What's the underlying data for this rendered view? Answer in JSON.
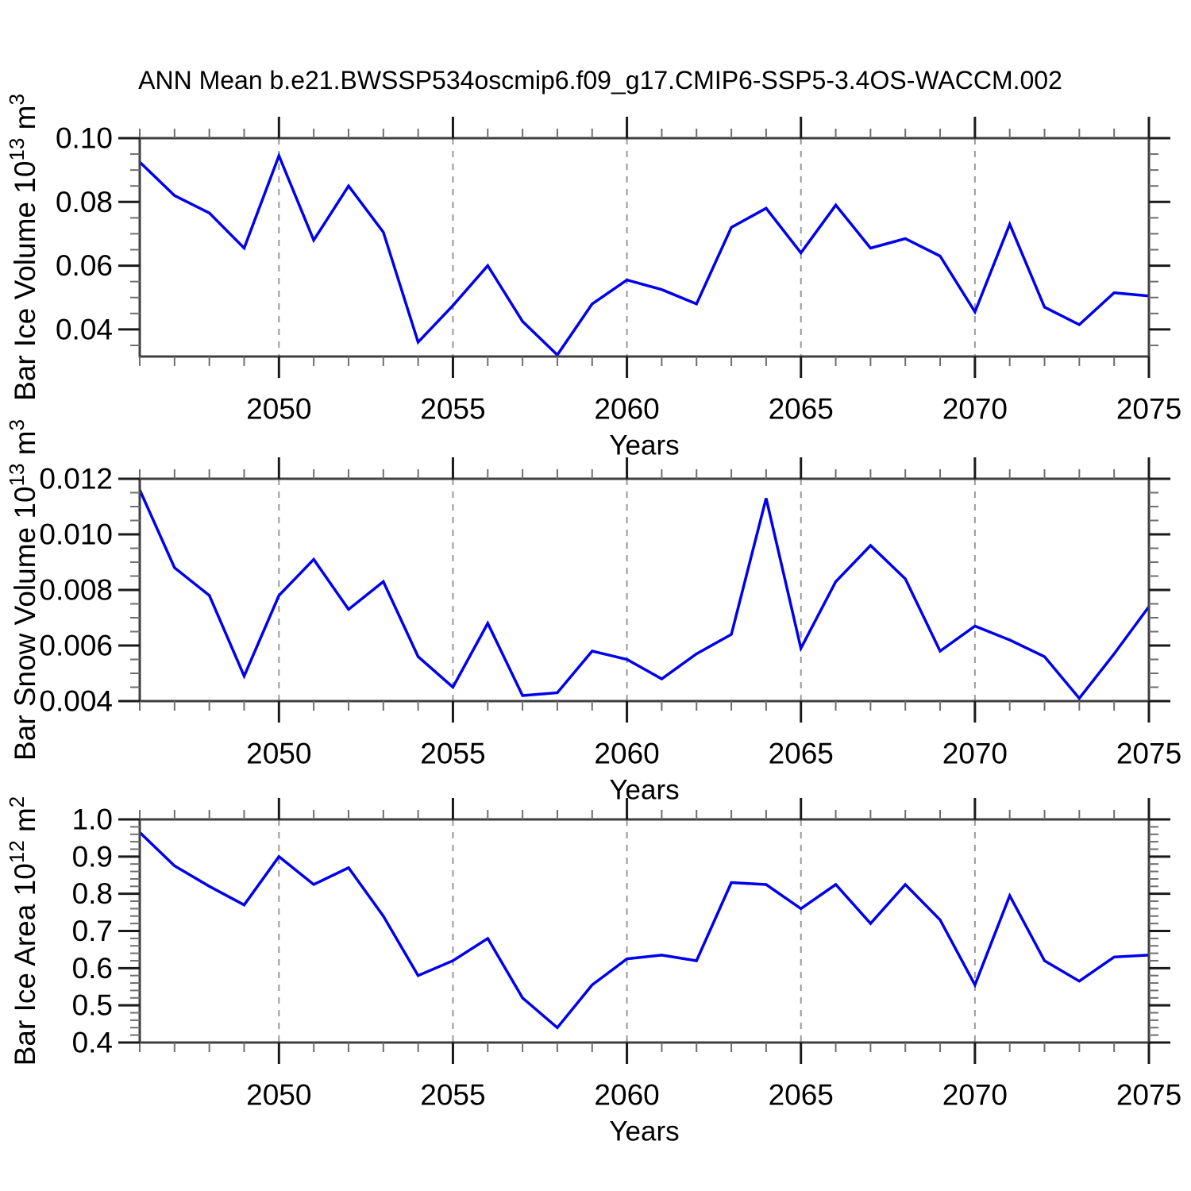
{
  "title": "ANN Mean b.e21.BWSSP534oscmip6.f09_g17.CMIP6-SSP5-3.4OS-WACCM.002",
  "colors": {
    "line": "#0000EE",
    "frame": "#3f3f3f",
    "major_tick": "#1a1a1a",
    "minor_tick": "#6e6e6e",
    "grid": "#999999",
    "text": "#000000",
    "background": "#ffffff"
  },
  "chart_data": [
    {
      "type": "line",
      "title": "",
      "ylabel": "Bar Ice Volume 10^13 m^3",
      "xlabel": "Years",
      "x": [
        2046,
        2047,
        2048,
        2049,
        2050,
        2051,
        2052,
        2053,
        2054,
        2055,
        2056,
        2057,
        2058,
        2059,
        2060,
        2061,
        2062,
        2063,
        2064,
        2065,
        2066,
        2067,
        2068,
        2069,
        2070,
        2071,
        2072,
        2073,
        2074,
        2075
      ],
      "values": [
        0.0925,
        0.082,
        0.0765,
        0.0655,
        0.0945,
        0.068,
        0.085,
        0.0705,
        0.036,
        0.0475,
        0.06,
        0.0425,
        0.032,
        0.048,
        0.0555,
        0.0525,
        0.048,
        0.072,
        0.078,
        0.064,
        0.079,
        0.0655,
        0.0685,
        0.063,
        0.0455,
        0.073,
        0.047,
        0.0415,
        0.0515,
        0.0505
      ],
      "xlim": [
        2046,
        2075
      ],
      "ylim": [
        0.0315,
        0.1
      ],
      "xticks": [
        2050,
        2055,
        2060,
        2065,
        2070,
        2075
      ],
      "xtick_labels": [
        "2050",
        "2055",
        "2060",
        "2065",
        "2070",
        "2075"
      ],
      "xminor_step": 1,
      "yticks": [
        0.04,
        0.06,
        0.08,
        0.1
      ],
      "ytick_labels": [
        "0.04",
        "0.06",
        "0.08",
        "0.10"
      ],
      "yminor_step": 0.005,
      "gridlines_x": [
        2050,
        2055,
        2060,
        2065,
        2070
      ],
      "grid_style": "dashed-vertical",
      "legend": "none"
    },
    {
      "type": "line",
      "title": "",
      "ylabel": "Bar Snow Volume 10^13 m^3",
      "xlabel": "Years",
      "x": [
        2046,
        2047,
        2048,
        2049,
        2050,
        2051,
        2052,
        2053,
        2054,
        2055,
        2056,
        2057,
        2058,
        2059,
        2060,
        2061,
        2062,
        2063,
        2064,
        2065,
        2066,
        2067,
        2068,
        2069,
        2070,
        2071,
        2072,
        2073,
        2074,
        2075
      ],
      "values": [
        0.0116,
        0.0088,
        0.0078,
        0.0049,
        0.0078,
        0.0091,
        0.0073,
        0.0083,
        0.0056,
        0.0045,
        0.0068,
        0.0042,
        0.0043,
        0.0058,
        0.0055,
        0.0048,
        0.0057,
        0.0064,
        0.0113,
        0.0059,
        0.0083,
        0.0096,
        0.0084,
        0.0058,
        0.0067,
        0.0062,
        0.0056,
        0.0041,
        0.0057,
        0.0074
      ],
      "xlim": [
        2046,
        2075
      ],
      "ylim": [
        0.004,
        0.012
      ],
      "xticks": [
        2050,
        2055,
        2060,
        2065,
        2070,
        2075
      ],
      "xtick_labels": [
        "2050",
        "2055",
        "2060",
        "2065",
        "2070",
        "2075"
      ],
      "xminor_step": 1,
      "yticks": [
        0.004,
        0.006,
        0.008,
        0.01,
        0.012
      ],
      "ytick_labels": [
        "0.004",
        "0.006",
        "0.008",
        "0.010",
        "0.012"
      ],
      "yminor_step": 0.0005,
      "gridlines_x": [
        2050,
        2055,
        2060,
        2065,
        2070
      ],
      "grid_style": "dashed-vertical",
      "legend": "none"
    },
    {
      "type": "line",
      "title": "",
      "ylabel": "Bar Ice Area 10^12 m^2",
      "xlabel": "Years",
      "x": [
        2046,
        2047,
        2048,
        2049,
        2050,
        2051,
        2052,
        2053,
        2054,
        2055,
        2056,
        2057,
        2058,
        2059,
        2060,
        2061,
        2062,
        2063,
        2064,
        2065,
        2066,
        2067,
        2068,
        2069,
        2070,
        2071,
        2072,
        2073,
        2074,
        2075
      ],
      "values": [
        0.965,
        0.875,
        0.82,
        0.77,
        0.9,
        0.825,
        0.87,
        0.74,
        0.58,
        0.62,
        0.68,
        0.52,
        0.44,
        0.555,
        0.625,
        0.635,
        0.62,
        0.83,
        0.825,
        0.76,
        0.825,
        0.72,
        0.825,
        0.73,
        0.555,
        0.795,
        0.62,
        0.565,
        0.63,
        0.635
      ],
      "xlim": [
        2046,
        2075
      ],
      "ylim": [
        0.4,
        1.0
      ],
      "xticks": [
        2050,
        2055,
        2060,
        2065,
        2070,
        2075
      ],
      "xtick_labels": [
        "2050",
        "2055",
        "2060",
        "2065",
        "2070",
        "2075"
      ],
      "xminor_step": 1,
      "yticks": [
        0.4,
        0.5,
        0.6,
        0.7,
        0.8,
        0.9,
        1.0
      ],
      "ytick_labels": [
        "0.4",
        "0.5",
        "0.6",
        "0.7",
        "0.8",
        "0.9",
        "1.0"
      ],
      "yminor_step": 0.02,
      "gridlines_x": [
        2050,
        2055,
        2060,
        2065,
        2070
      ],
      "grid_style": "dashed-vertical",
      "legend": "none"
    }
  ]
}
